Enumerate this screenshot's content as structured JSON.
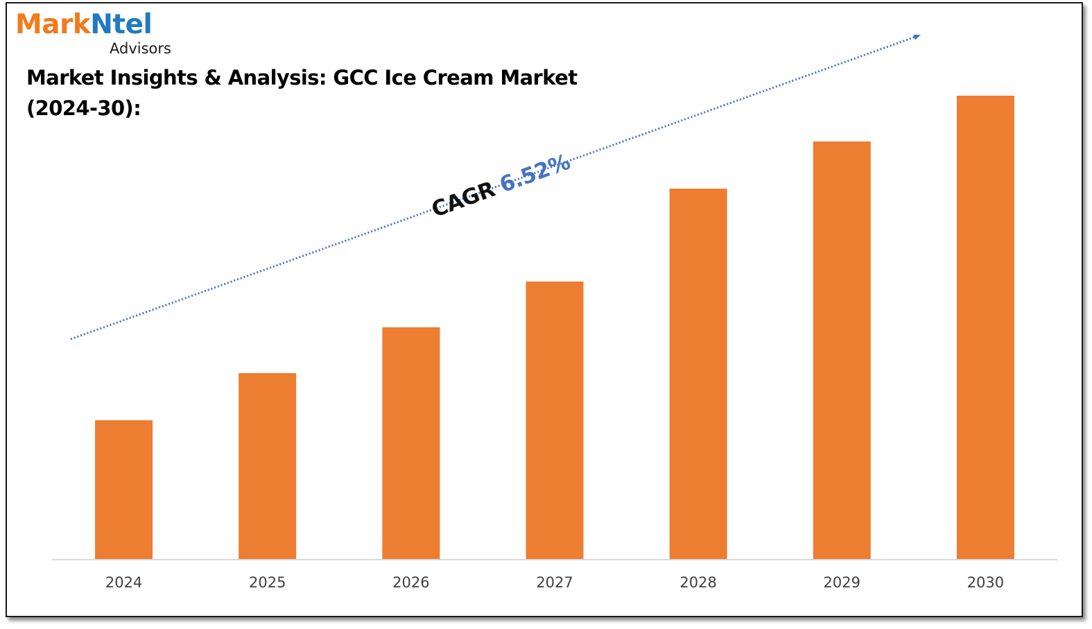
{
  "logo": {
    "part1": "Mark",
    "part2": "Ntel",
    "sub": "Advisors"
  },
  "title": "Market Insights & Analysis: GCC Ice Cream Market (2024-30):",
  "cagr": {
    "label": "CAGR",
    "value": "6.52%"
  },
  "colors": {
    "bar": "#ed7d31",
    "trend": "#4472c4",
    "axis": "#d9d9d9",
    "tick_text": "#404040",
    "logo_orange": "#f07b1d",
    "logo_blue": "#1f7ac2"
  },
  "chart_data": {
    "type": "bar",
    "title": "Market Insights & Analysis: GCC Ice Cream Market (2024-30):",
    "categories": [
      "2024",
      "2025",
      "2026",
      "2027",
      "2028",
      "2029",
      "2030"
    ],
    "values": [
      1.0,
      1.34,
      1.67,
      2.0,
      2.67,
      3.01,
      3.34
    ],
    "xlabel": "",
    "ylabel": "",
    "ylim": [
      0,
      3.5
    ],
    "grid": false,
    "legend": "none",
    "annotations": [
      "CAGR 6.52%"
    ]
  }
}
